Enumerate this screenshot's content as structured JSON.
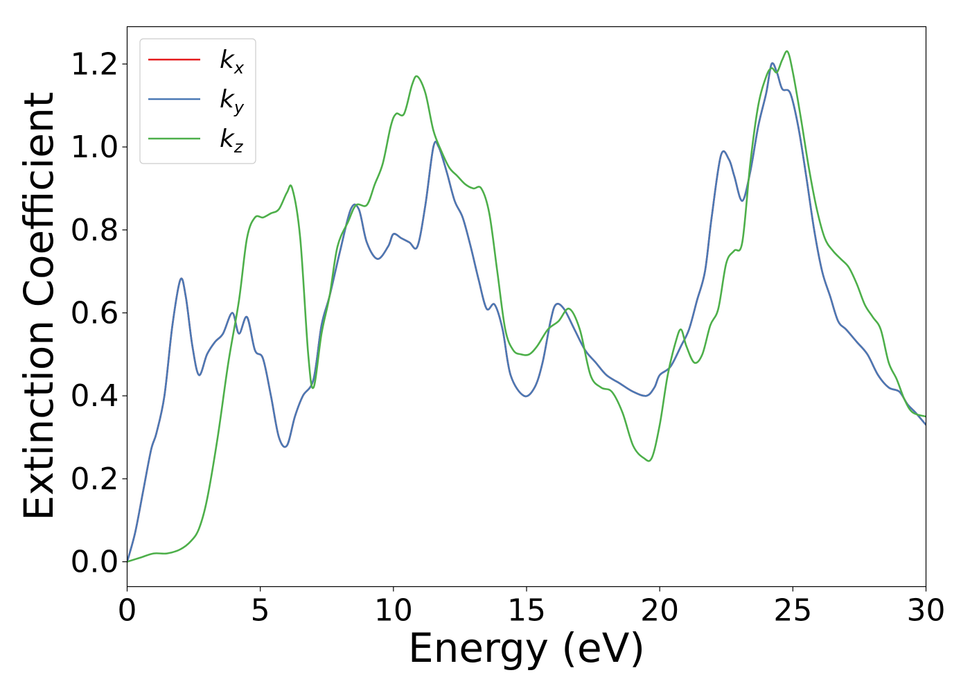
{
  "chart_data": {
    "type": "line",
    "title": "",
    "xlabel": "Energy (eV)",
    "ylabel": "Extinction Coefficient",
    "xlim": [
      0,
      30
    ],
    "ylim": [
      -0.06,
      1.29
    ],
    "xticks": [
      0,
      5,
      10,
      15,
      20,
      25,
      30
    ],
    "xtick_labels": [
      "0",
      "5",
      "10",
      "15",
      "20",
      "25",
      "30"
    ],
    "yticks": [
      0.0,
      0.2,
      0.4,
      0.6,
      0.8,
      1.0,
      1.2
    ],
    "ytick_labels": [
      "0.0",
      "0.2",
      "0.4",
      "0.6",
      "0.8",
      "1.0",
      "1.2"
    ],
    "grid": false,
    "legend_position": "top-left",
    "series": [
      {
        "name": "k_x",
        "legend_main": "k",
        "legend_sub": "x",
        "color": "#e41a1c",
        "x": [
          0,
          0.3,
          0.6,
          0.9,
          1.1,
          1.4,
          1.7,
          2.0,
          2.2,
          2.45,
          2.7,
          3.0,
          3.3,
          3.6,
          3.95,
          4.2,
          4.5,
          4.8,
          5.1,
          5.4,
          5.7,
          6.0,
          6.3,
          6.6,
          7.0,
          7.3,
          7.6,
          8.0,
          8.4,
          8.7,
          9.0,
          9.4,
          9.8,
          10.0,
          10.3,
          10.6,
          10.9,
          11.2,
          11.5,
          11.7,
          12.0,
          12.3,
          12.6,
          12.9,
          13.2,
          13.5,
          13.8,
          14.1,
          14.4,
          14.9,
          15.3,
          15.6,
          15.9,
          16.1,
          16.4,
          16.8,
          17.2,
          17.6,
          18.0,
          18.5,
          19.0,
          19.5,
          19.8,
          20.0,
          20.4,
          20.8,
          21.1,
          21.4,
          21.7,
          21.95,
          22.3,
          22.6,
          22.8,
          23.1,
          23.4,
          23.7,
          24.0,
          24.2,
          24.4,
          24.6,
          24.9,
          25.2,
          25.5,
          25.8,
          26.1,
          26.4,
          26.7,
          27.0,
          27.4,
          27.8,
          28.2,
          28.6,
          29.0,
          29.3,
          29.6,
          30.0
        ],
        "y": [
          0.0,
          0.07,
          0.17,
          0.27,
          0.31,
          0.4,
          0.57,
          0.68,
          0.64,
          0.52,
          0.45,
          0.5,
          0.53,
          0.55,
          0.6,
          0.55,
          0.59,
          0.51,
          0.49,
          0.4,
          0.3,
          0.28,
          0.35,
          0.4,
          0.44,
          0.57,
          0.64,
          0.75,
          0.85,
          0.85,
          0.77,
          0.73,
          0.76,
          0.79,
          0.78,
          0.77,
          0.76,
          0.86,
          1.0,
          1.0,
          0.94,
          0.87,
          0.83,
          0.76,
          0.68,
          0.61,
          0.62,
          0.56,
          0.45,
          0.4,
          0.42,
          0.48,
          0.58,
          0.62,
          0.61,
          0.56,
          0.51,
          0.48,
          0.45,
          0.43,
          0.41,
          0.4,
          0.42,
          0.45,
          0.47,
          0.52,
          0.56,
          0.63,
          0.7,
          0.83,
          0.98,
          0.97,
          0.93,
          0.87,
          0.94,
          1.05,
          1.13,
          1.2,
          1.18,
          1.14,
          1.13,
          1.05,
          0.93,
          0.8,
          0.7,
          0.64,
          0.58,
          0.56,
          0.53,
          0.5,
          0.45,
          0.42,
          0.41,
          0.38,
          0.36,
          0.33
        ]
      },
      {
        "name": "k_y",
        "legend_main": "k",
        "legend_sub": "y",
        "color": "#4a79b5",
        "x": [
          0,
          0.3,
          0.6,
          0.9,
          1.1,
          1.4,
          1.7,
          2.0,
          2.2,
          2.45,
          2.7,
          3.0,
          3.3,
          3.6,
          3.95,
          4.2,
          4.5,
          4.8,
          5.1,
          5.4,
          5.7,
          6.0,
          6.3,
          6.6,
          7.0,
          7.3,
          7.6,
          8.0,
          8.4,
          8.7,
          9.0,
          9.4,
          9.8,
          10.0,
          10.3,
          10.6,
          10.9,
          11.2,
          11.5,
          11.7,
          12.0,
          12.3,
          12.6,
          12.9,
          13.2,
          13.5,
          13.8,
          14.1,
          14.4,
          14.9,
          15.3,
          15.6,
          15.9,
          16.1,
          16.4,
          16.8,
          17.2,
          17.6,
          18.0,
          18.5,
          19.0,
          19.5,
          19.8,
          20.0,
          20.4,
          20.8,
          21.1,
          21.4,
          21.7,
          21.95,
          22.3,
          22.6,
          22.8,
          23.1,
          23.4,
          23.7,
          24.0,
          24.2,
          24.4,
          24.6,
          24.9,
          25.2,
          25.5,
          25.8,
          26.1,
          26.4,
          26.7,
          27.0,
          27.4,
          27.8,
          28.2,
          28.6,
          29.0,
          29.3,
          29.6,
          30.0
        ],
        "y": [
          0.0,
          0.07,
          0.17,
          0.27,
          0.31,
          0.4,
          0.57,
          0.68,
          0.64,
          0.52,
          0.45,
          0.5,
          0.53,
          0.55,
          0.6,
          0.55,
          0.59,
          0.51,
          0.49,
          0.4,
          0.3,
          0.28,
          0.35,
          0.4,
          0.44,
          0.57,
          0.64,
          0.75,
          0.85,
          0.85,
          0.77,
          0.73,
          0.76,
          0.79,
          0.78,
          0.77,
          0.76,
          0.86,
          1.0,
          1.0,
          0.94,
          0.87,
          0.83,
          0.76,
          0.68,
          0.61,
          0.62,
          0.56,
          0.45,
          0.4,
          0.42,
          0.48,
          0.58,
          0.62,
          0.61,
          0.56,
          0.51,
          0.48,
          0.45,
          0.43,
          0.41,
          0.4,
          0.42,
          0.45,
          0.47,
          0.52,
          0.56,
          0.63,
          0.7,
          0.83,
          0.98,
          0.97,
          0.93,
          0.87,
          0.94,
          1.05,
          1.13,
          1.2,
          1.18,
          1.14,
          1.13,
          1.05,
          0.93,
          0.8,
          0.7,
          0.64,
          0.58,
          0.56,
          0.53,
          0.5,
          0.45,
          0.42,
          0.41,
          0.38,
          0.36,
          0.33
        ]
      },
      {
        "name": "k_z",
        "legend_main": "k",
        "legend_sub": "z",
        "color": "#4daf4a",
        "x": [
          0,
          0.5,
          1.0,
          1.5,
          2.0,
          2.4,
          2.7,
          3.0,
          3.4,
          3.8,
          4.2,
          4.5,
          4.8,
          5.1,
          5.4,
          5.7,
          6.0,
          6.2,
          6.5,
          6.8,
          7.0,
          7.3,
          7.6,
          7.9,
          8.3,
          8.6,
          9.0,
          9.3,
          9.6,
          9.9,
          10.1,
          10.4,
          10.7,
          10.9,
          11.2,
          11.5,
          11.8,
          12.1,
          12.4,
          12.7,
          13.0,
          13.3,
          13.6,
          13.9,
          14.2,
          14.5,
          14.8,
          15.1,
          15.4,
          15.8,
          16.2,
          16.6,
          17.0,
          17.4,
          17.8,
          18.2,
          18.6,
          19.0,
          19.4,
          19.7,
          20.0,
          20.3,
          20.6,
          20.8,
          21.0,
          21.3,
          21.6,
          21.9,
          22.2,
          22.5,
          22.8,
          23.1,
          23.4,
          23.7,
          24.0,
          24.2,
          24.4,
          24.6,
          24.8,
          25.0,
          25.3,
          25.6,
          25.9,
          26.2,
          26.5,
          26.8,
          27.1,
          27.4,
          27.7,
          28.0,
          28.3,
          28.6,
          28.9,
          29.2,
          29.5,
          30.0
        ],
        "y": [
          0.0,
          0.01,
          0.02,
          0.02,
          0.03,
          0.05,
          0.08,
          0.15,
          0.3,
          0.48,
          0.63,
          0.78,
          0.83,
          0.83,
          0.84,
          0.85,
          0.89,
          0.9,
          0.78,
          0.5,
          0.42,
          0.55,
          0.64,
          0.76,
          0.82,
          0.86,
          0.86,
          0.91,
          0.96,
          1.05,
          1.08,
          1.08,
          1.15,
          1.17,
          1.13,
          1.04,
          0.99,
          0.95,
          0.93,
          0.91,
          0.9,
          0.9,
          0.84,
          0.7,
          0.56,
          0.51,
          0.5,
          0.5,
          0.52,
          0.56,
          0.58,
          0.61,
          0.56,
          0.45,
          0.42,
          0.41,
          0.36,
          0.28,
          0.25,
          0.25,
          0.33,
          0.45,
          0.53,
          0.56,
          0.52,
          0.48,
          0.5,
          0.57,
          0.61,
          0.72,
          0.75,
          0.77,
          0.96,
          1.1,
          1.17,
          1.19,
          1.18,
          1.21,
          1.23,
          1.18,
          1.07,
          0.95,
          0.85,
          0.78,
          0.75,
          0.73,
          0.71,
          0.67,
          0.62,
          0.59,
          0.56,
          0.48,
          0.44,
          0.39,
          0.36,
          0.35
        ]
      }
    ]
  }
}
